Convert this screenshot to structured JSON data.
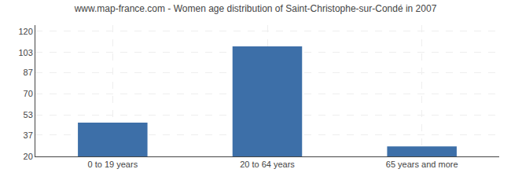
{
  "chart_data": {
    "type": "bar",
    "title": "www.map-france.com - Women age distribution of Saint-Christophe-sur-Condé in 2007",
    "categories": [
      "0 to 19 years",
      "20 to 64 years",
      "65 years and more"
    ],
    "values": [
      47,
      108,
      28
    ],
    "color": "#3d6fa8",
    "ylim": [
      20,
      125
    ],
    "yticks": [
      20,
      37,
      53,
      70,
      87,
      103,
      120
    ],
    "grid": true
  }
}
